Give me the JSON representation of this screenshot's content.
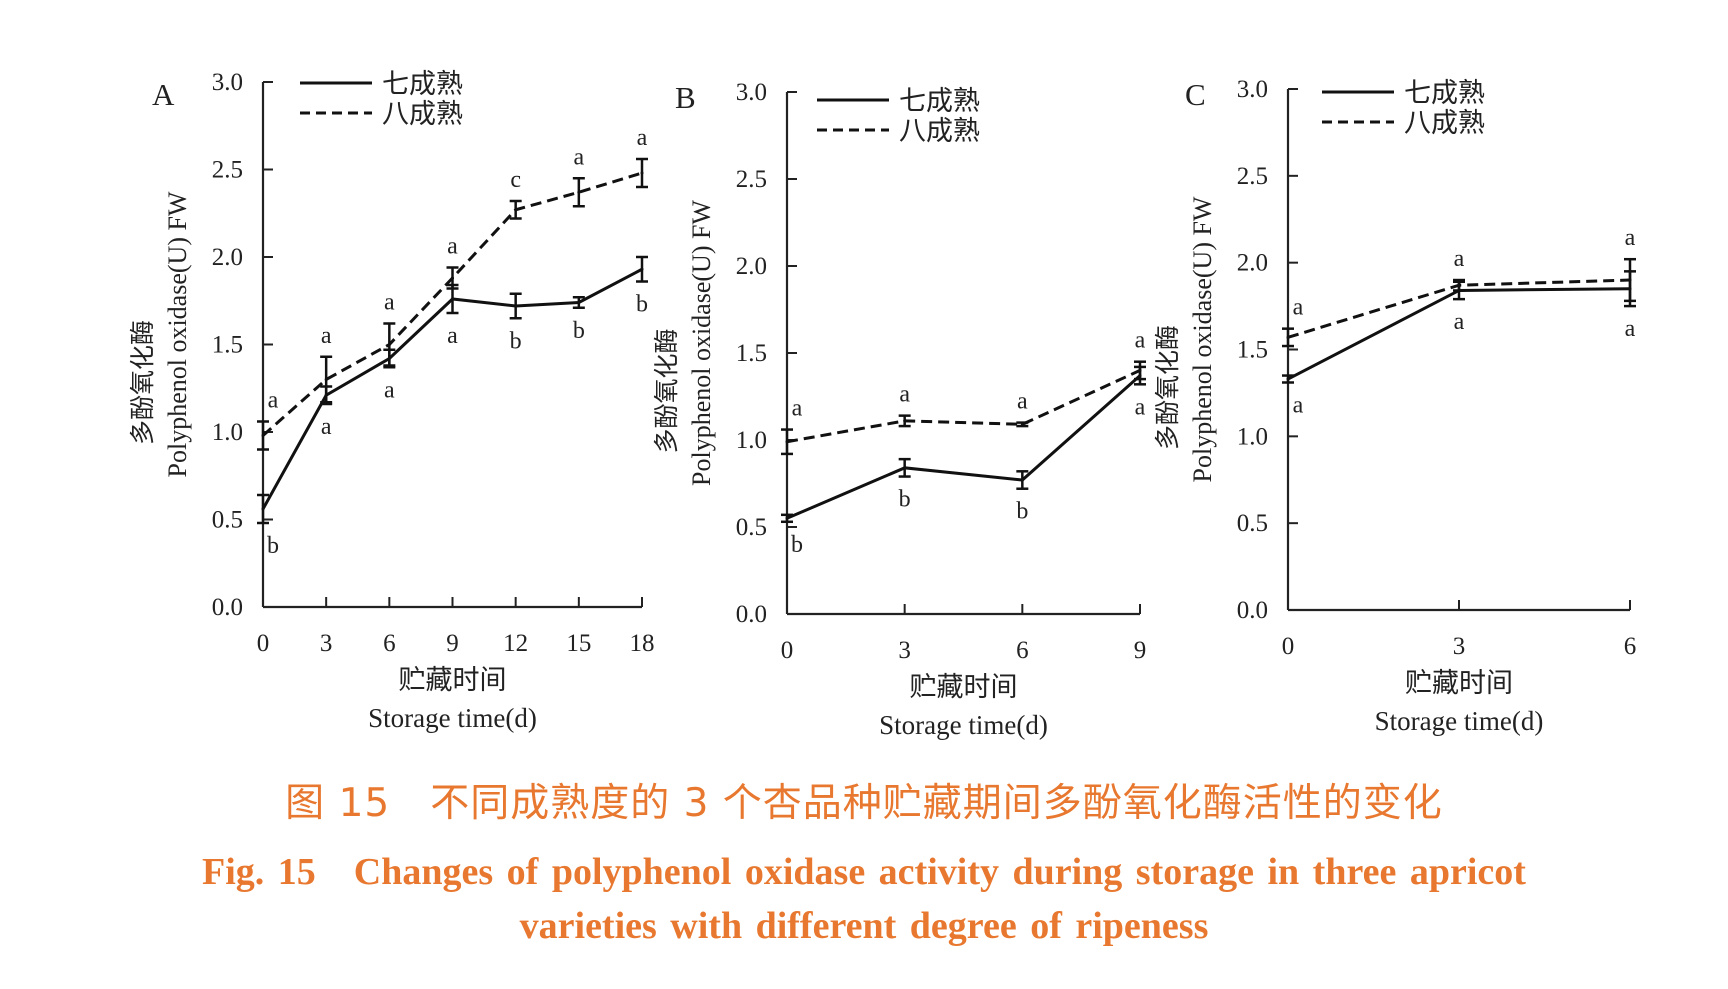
{
  "chart_data": [
    {
      "type": "line",
      "panel_label": "A",
      "ylabel_cn": "多酚氧化酶",
      "ylabel_en": "Polyphenol oxidase(U) FW",
      "xlabel_cn": "贮藏时间",
      "xlabel_en": "Storage time(d)",
      "x": [
        0,
        3,
        6,
        9,
        12,
        15,
        18
      ],
      "xlim": [
        0,
        18
      ],
      "ylim": [
        0,
        3.0
      ],
      "yticks": [
        "0.0",
        "0.5",
        "1.0",
        "1.5",
        "2.0",
        "2.5",
        "3.0"
      ],
      "xticks": [
        "0",
        "3",
        "6",
        "9",
        "12",
        "15",
        "18"
      ],
      "legend": "top-left",
      "grid": false,
      "series": [
        {
          "name": "七成熟",
          "style": "solid",
          "values": [
            0.56,
            1.21,
            1.42,
            1.76,
            1.72,
            1.74,
            1.93
          ],
          "errors": [
            0.08,
            0.05,
            0.05,
            0.08,
            0.07,
            0.03,
            0.07
          ],
          "letters": [
            "b",
            "a",
            "a",
            "a",
            "b",
            "b",
            "b"
          ]
        },
        {
          "name": "八成熟",
          "style": "dashed",
          "values": [
            0.98,
            1.3,
            1.5,
            1.88,
            2.27,
            2.37,
            2.48
          ],
          "errors": [
            0.08,
            0.13,
            0.12,
            0.06,
            0.05,
            0.08,
            0.08
          ],
          "letters": [
            "a",
            "a",
            "a",
            "a",
            "c",
            "a",
            "a"
          ]
        }
      ]
    },
    {
      "type": "line",
      "panel_label": "B",
      "ylabel_cn": "多酚氧化酶",
      "ylabel_en": "Polyphenol oxidase(U) FW",
      "xlabel_cn": "贮藏时间",
      "xlabel_en": "Storage time(d)",
      "x": [
        0,
        3,
        6,
        9
      ],
      "xlim": [
        0,
        9
      ],
      "ylim": [
        0,
        3.0
      ],
      "yticks": [
        "0.0",
        "0.5",
        "1.0",
        "1.5",
        "2.0",
        "2.5",
        "3.0"
      ],
      "xticks": [
        "0",
        "3",
        "6",
        "9"
      ],
      "legend": "top-left",
      "grid": false,
      "series": [
        {
          "name": "七成熟",
          "style": "solid",
          "values": [
            0.55,
            0.84,
            0.77,
            1.37
          ],
          "errors": [
            0.02,
            0.05,
            0.05,
            0.05
          ],
          "letters": [
            "b",
            "b",
            "b",
            "a"
          ]
        },
        {
          "name": "八成熟",
          "style": "dashed",
          "values": [
            0.99,
            1.11,
            1.09,
            1.4
          ],
          "errors": [
            0.07,
            0.03,
            0.01,
            0.05
          ],
          "letters": [
            "a",
            "a",
            "a",
            "a"
          ]
        }
      ]
    },
    {
      "type": "line",
      "panel_label": "C",
      "ylabel_cn": "多酚氧化酶",
      "ylabel_en": "Polyphenol oxidase(U) FW",
      "xlabel_cn": "贮藏时间",
      "xlabel_en": "Storage time(d)",
      "x": [
        0,
        3,
        6
      ],
      "xlim": [
        0,
        6
      ],
      "ylim": [
        0,
        3.0
      ],
      "yticks": [
        "0.0",
        "0.5",
        "1.0",
        "1.5",
        "2.0",
        "2.5",
        "3.0"
      ],
      "xticks": [
        "0",
        "3",
        "6"
      ],
      "legend": "top-left",
      "grid": false,
      "series": [
        {
          "name": "七成熟",
          "style": "solid",
          "values": [
            1.33,
            1.84,
            1.85
          ],
          "errors": [
            0.02,
            0.05,
            0.1
          ],
          "letters": [
            "a",
            "a",
            "a"
          ]
        },
        {
          "name": "八成熟",
          "style": "dashed",
          "values": [
            1.57,
            1.87,
            1.9
          ],
          "errors": [
            0.05,
            0.03,
            0.12
          ],
          "letters": [
            "a",
            "a",
            "a"
          ]
        }
      ]
    }
  ],
  "caption": {
    "cn": "图 15　不同成熟度的 3 个杏品种贮藏期间多酚氧化酶活性的变化",
    "en_line1": "Fig. 15　Changes of polyphenol oxidase activity during storage in three apricot",
    "en_line2": "varieties with different degree of ripeness"
  },
  "colors": {
    "caption": "#e8782f",
    "lines": "#111111"
  }
}
